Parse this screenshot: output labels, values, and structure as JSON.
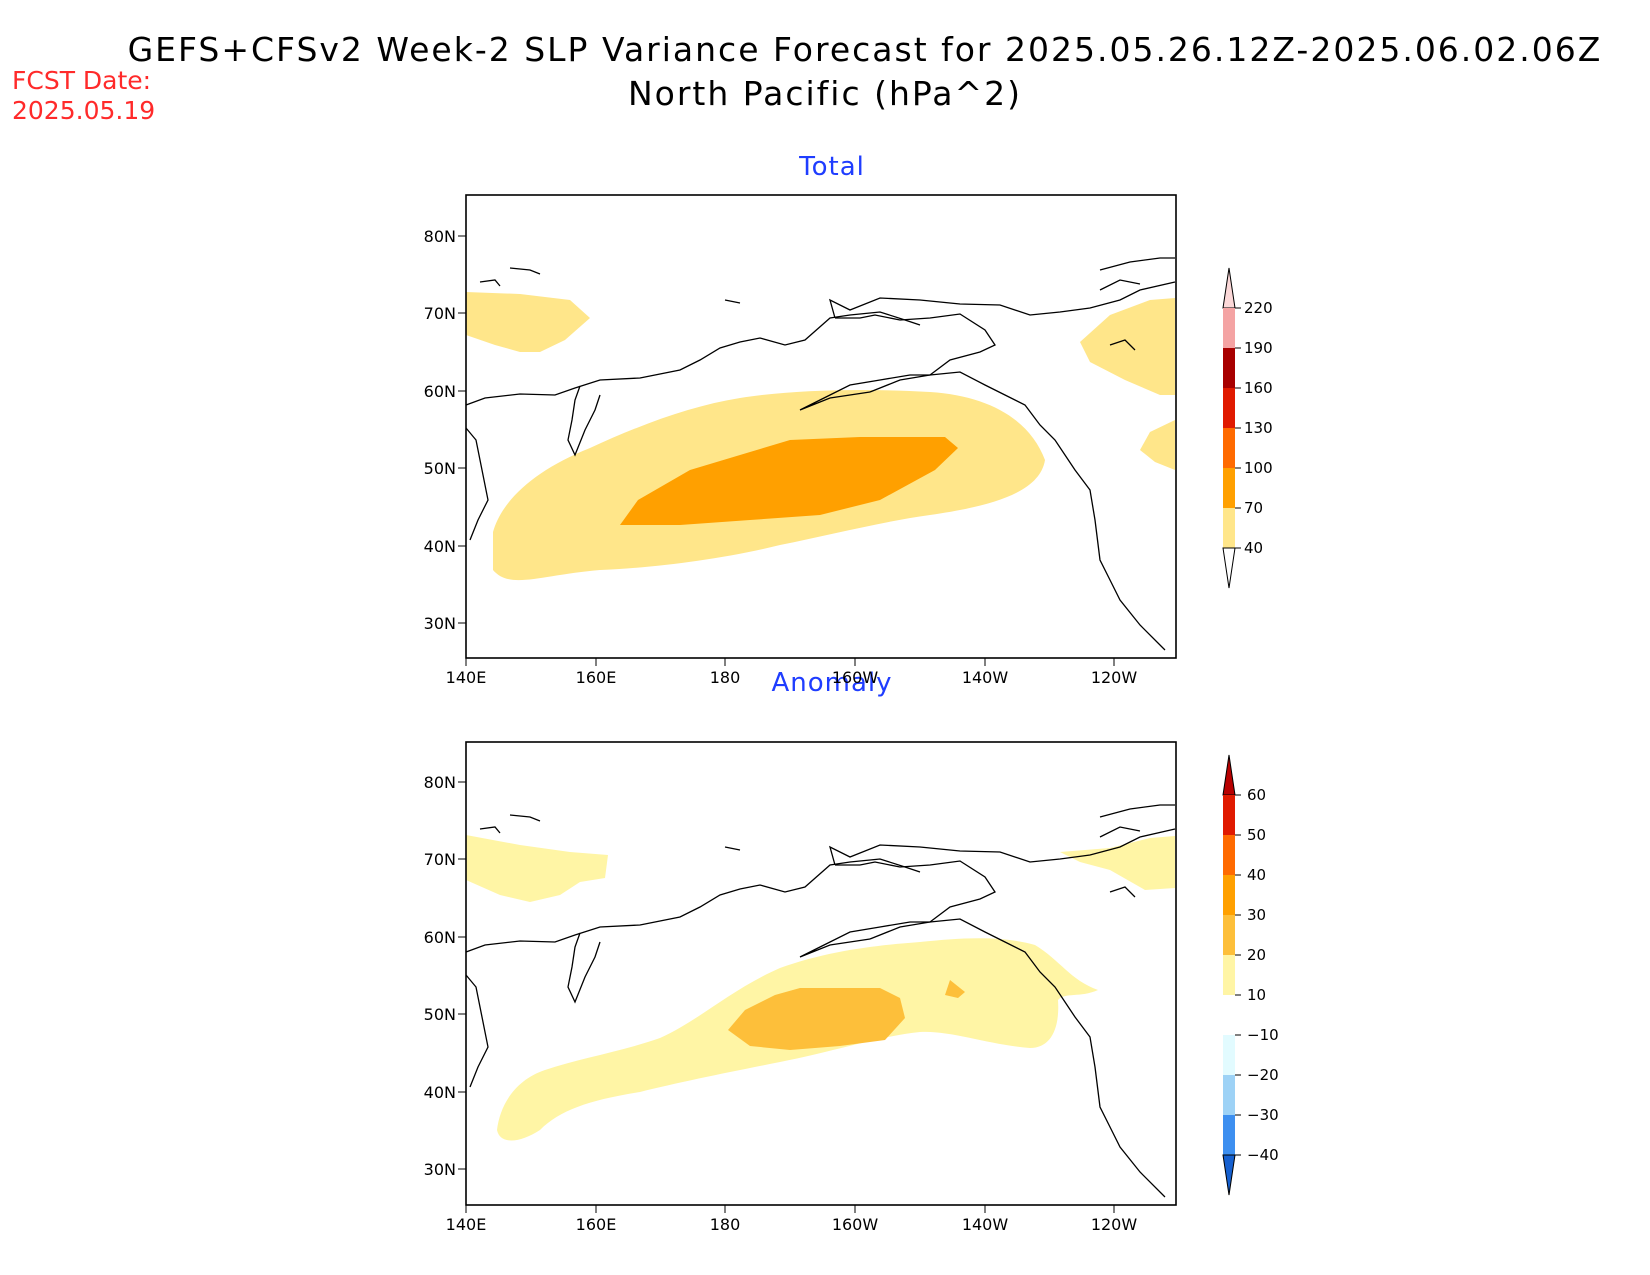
{
  "header": {
    "title": "GEFS+CFSv2 Week-2 SLP Variance Forecast for 2025.05.26.12Z-2025.06.02.06Z",
    "subtitle": "North Pacific (hPa^2)",
    "fcst_label": "FCST Date:",
    "fcst_date": "2025.05.19"
  },
  "panels": [
    {
      "title": "Total",
      "lat_ticks": [
        "80N",
        "70N",
        "60N",
        "50N",
        "40N",
        "30N"
      ],
      "lon_ticks": [
        "140E",
        "160E",
        "180",
        "160W",
        "140W",
        "120W"
      ],
      "colorbar": {
        "labels": [
          "220",
          "190",
          "160",
          "130",
          "100",
          "70",
          "40"
        ],
        "colors": [
          "#fbd8d8",
          "#f4a3a3",
          "#a80000",
          "#e01a00",
          "#ff6a00",
          "#ffa000",
          "#ffe68a"
        ]
      }
    },
    {
      "title": "Anomaly",
      "lat_ticks": [
        "80N",
        "70N",
        "60N",
        "50N",
        "40N",
        "30N"
      ],
      "lon_ticks": [
        "140E",
        "160E",
        "180",
        "160W",
        "140W",
        "120W"
      ],
      "colorbar": {
        "labels": [
          "60",
          "50",
          "40",
          "30",
          "20",
          "10",
          "−10",
          "−20",
          "−30",
          "−40"
        ],
        "colors": [
          "#b80000",
          "#e01a00",
          "#ff6a00",
          "#ffa000",
          "#fdbf3a",
          "#fff5a5",
          "#ffffff",
          "#e2fbff",
          "#9dd2f6",
          "#3d8ff0",
          "#1560d0"
        ]
      }
    }
  ]
}
